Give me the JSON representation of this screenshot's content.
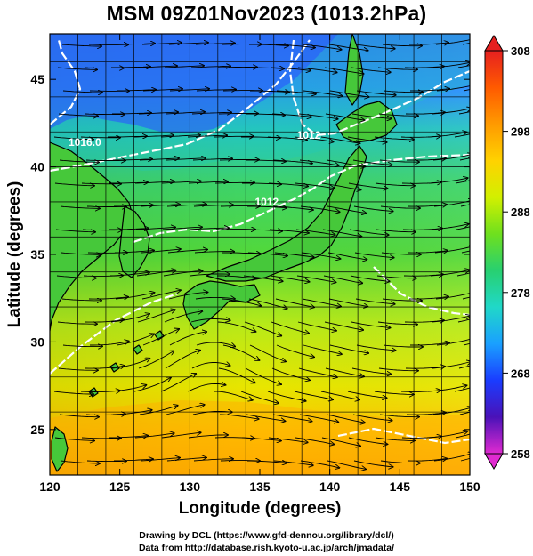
{
  "title": "MSM 09Z01Nov2023 (1013.2hPa)",
  "xaxis": {
    "label": "Longitude (degrees)",
    "range": [
      120,
      150
    ],
    "ticks": [
      120,
      125,
      130,
      135,
      140,
      145,
      150
    ]
  },
  "yaxis": {
    "label": "Latitude  (degrees)",
    "range": [
      22.4,
      47.6
    ],
    "ticks": [
      25,
      30,
      35,
      40,
      45
    ]
  },
  "colorbar": {
    "range": [
      258,
      308
    ],
    "ticks": [
      258,
      268,
      278,
      288,
      298,
      308
    ],
    "colors": [
      "#e02ad0",
      "#4a12b8",
      "#1a3cff",
      "#1aa0ff",
      "#20d8c8",
      "#28d070",
      "#6ee01e",
      "#d2f000",
      "#ffd200",
      "#ff9a00",
      "#ff5a00",
      "#e62020"
    ]
  },
  "contour_labels": [
    {
      "text": "1016.0",
      "lon": 122.5,
      "lat": 41.2
    },
    {
      "text": "1012",
      "lon": 138.5,
      "lat": 41.6
    },
    {
      "text": "1012",
      "lon": 135.5,
      "lat": 37.8
    }
  ],
  "grid": true,
  "footer": {
    "drawing": "Drawing by DCL (https://www.gfd-dennou.org/library/dcl/)",
    "data": "Data from http://database.rish.kyoto-u.ac.jp/arch/jmadata/"
  }
}
